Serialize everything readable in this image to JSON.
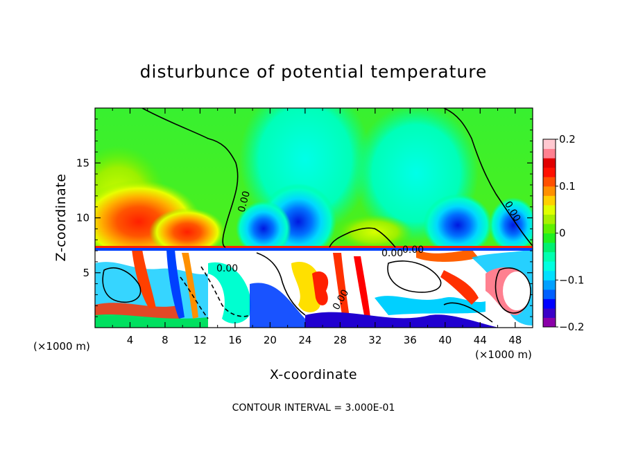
{
  "chart_data": {
    "type": "heatmap",
    "title": "disturbunce of potential temperature",
    "xlabel": "X-coordinate",
    "ylabel": "Z-coordinate",
    "x_unit_left": "(×1000 m)",
    "x_unit_right": "(×1000 m)",
    "xlim": [
      0,
      50
    ],
    "ylim": [
      0,
      20
    ],
    "x_ticks": [
      4,
      8,
      12,
      16,
      20,
      24,
      28,
      32,
      36,
      40,
      44,
      48
    ],
    "x_tick_labels": [
      "4",
      "8",
      "12",
      "16",
      "20",
      "24",
      "28",
      "32",
      "36",
      "40",
      "44",
      "48"
    ],
    "y_ticks": [
      5,
      10,
      15
    ],
    "y_tick_labels": [
      "5",
      "10",
      "15"
    ],
    "colorbar": {
      "range": [
        -0.2,
        0.2
      ],
      "tick_values": [
        0.2,
        0.1,
        0,
        -0.1,
        -0.2
      ],
      "tick_labels": [
        "0.2",
        "0.1",
        "0",
        "−0.1",
        "−0.2"
      ],
      "colors": [
        "#8a00a8",
        "#3a00c8",
        "#0000ff",
        "#0060ff",
        "#00a0ff",
        "#00e0ff",
        "#00ffe0",
        "#00ffb0",
        "#00f070",
        "#20f020",
        "#60f000",
        "#a8f000",
        "#e0ff00",
        "#ffd000",
        "#ff9000",
        "#ff5000",
        "#ff1000",
        "#e00000",
        "#ff8090",
        "#ffc8d0"
      ]
    },
    "contour_labels": [
      "0.00",
      "0.00",
      "0.00",
      "0.00",
      "0.00",
      "0.00"
    ],
    "footer": "CONTOUR INTERVAL = 3.000E-01"
  }
}
